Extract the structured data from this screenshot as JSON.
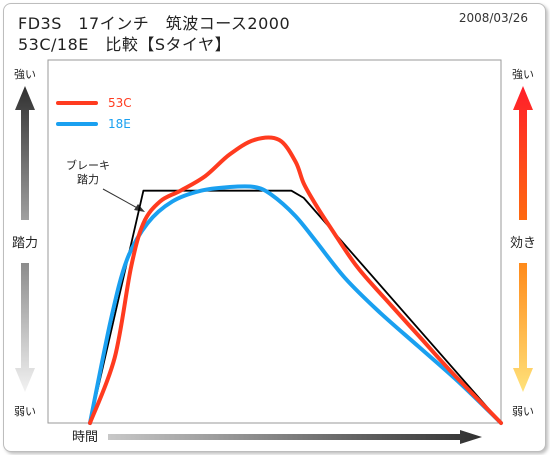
{
  "header": {
    "title_line1": "FD3S　17インチ　筑波コース2000",
    "title_line2": "53C/18E　比較【Sタイヤ】",
    "date": "2008/03/26"
  },
  "left_axis": {
    "top": "強い",
    "middle": "踏力",
    "bottom": "弱い"
  },
  "right_axis": {
    "top": "強い",
    "middle": "効き",
    "bottom": "弱い"
  },
  "x_axis": {
    "label": "時間"
  },
  "annotation": {
    "line1": "ブレーキ",
    "line2": "踏力"
  },
  "colors": {
    "series_53C": "#ff3b1f",
    "series_18E": "#1aa0f0",
    "brake_pedal": "#000000"
  },
  "chart_data": {
    "type": "line",
    "xlabel": "時間",
    "ylabel_left": "踏力",
    "ylabel_right": "効き",
    "xlim": [
      0,
      100
    ],
    "ylim": [
      0,
      100
    ],
    "grid": false,
    "legend_position": "top-left",
    "series": [
      {
        "name": "53C",
        "color": "#ff3b1f",
        "x": [
          0,
          6,
          10,
          13,
          17,
          22,
          28,
          34,
          40,
          46,
          50,
          52,
          55,
          59,
          65,
          72,
          80,
          88,
          100
        ],
        "y": [
          0,
          18,
          43,
          55,
          61,
          64,
          68,
          74,
          78,
          78,
          72,
          66,
          60,
          53,
          43,
          34,
          24,
          14,
          0
        ]
      },
      {
        "name": "18E",
        "color": "#1aa0f0",
        "x": [
          0,
          5,
          9,
          14,
          20,
          27,
          34,
          40,
          44,
          50,
          55,
          62,
          70,
          80,
          90,
          100
        ],
        "y": [
          0,
          28,
          45,
          55,
          61,
          64,
          65,
          65,
          63,
          57,
          50,
          40,
          31,
          21,
          11,
          0
        ]
      },
      {
        "color": "#000000",
        "x": [
          0,
          13,
          49,
          52,
          100
        ],
        "y": [
          0,
          64,
          64,
          62,
          0
        ]
      }
    ],
    "annotations": [
      {
        "text": "ブレーキ踏力",
        "points_to_series": 2
      }
    ]
  }
}
